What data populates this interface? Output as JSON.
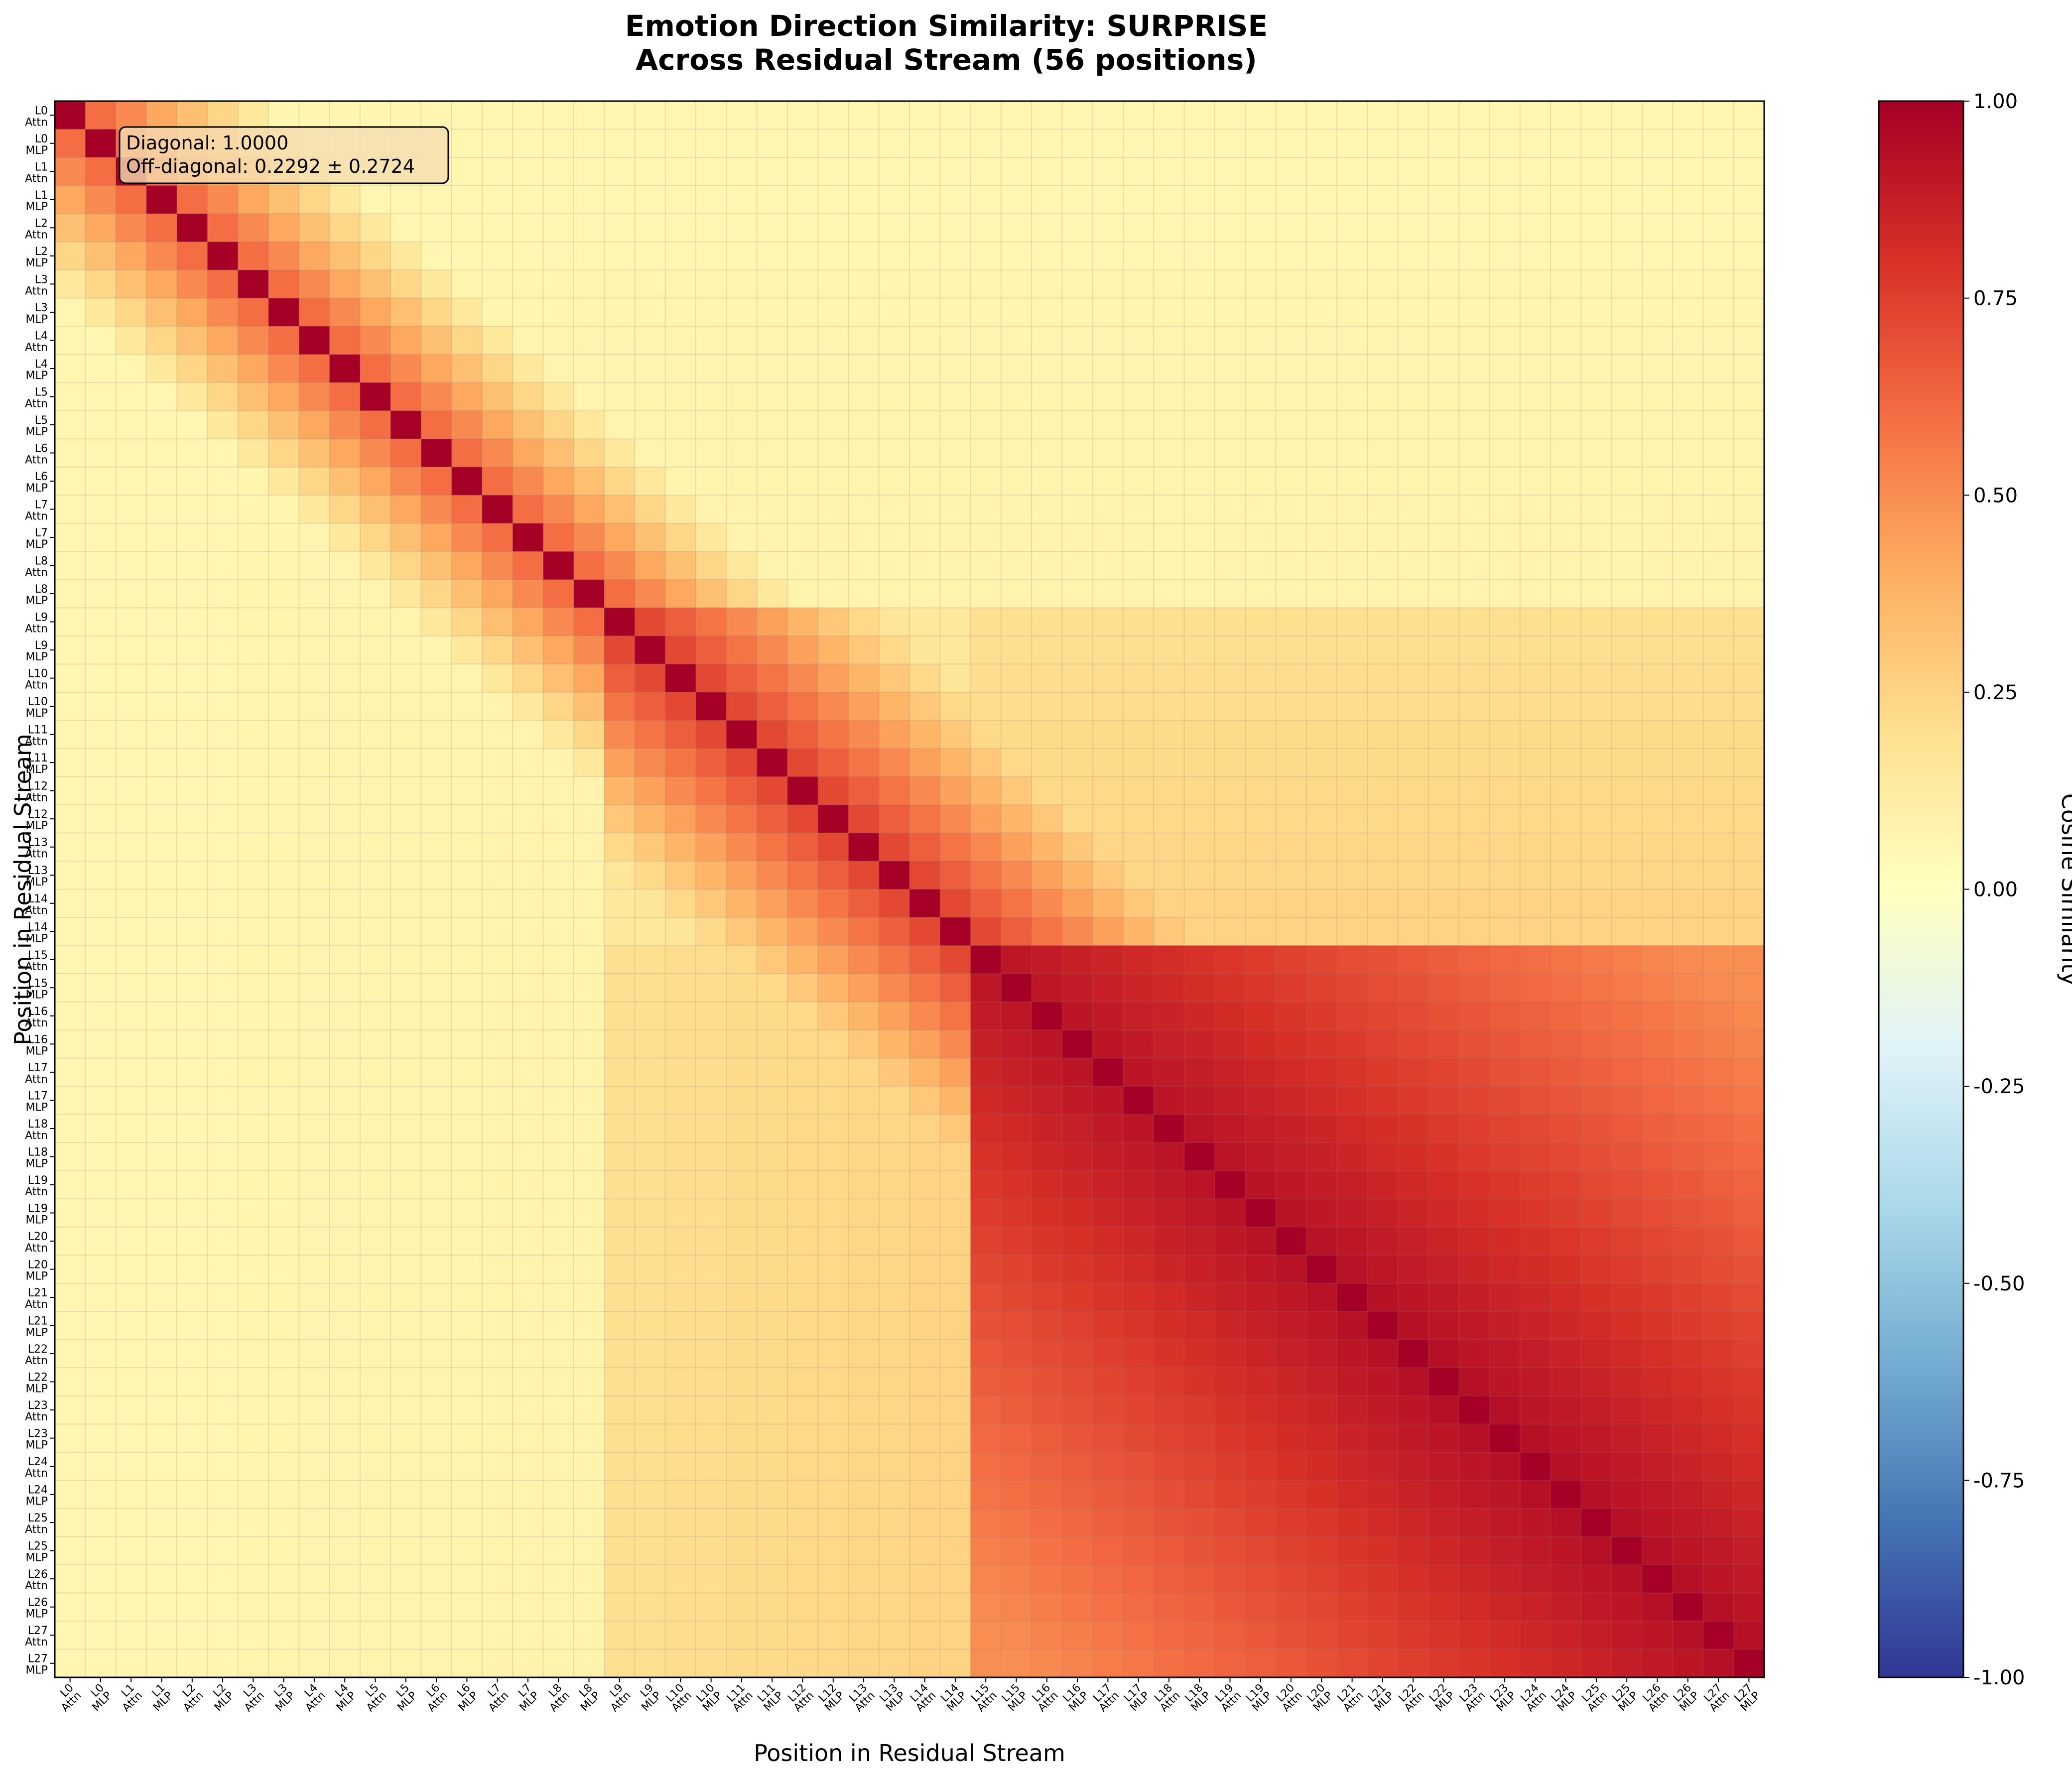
{
  "chart_data": {
    "type": "heatmap",
    "title_line1": "Emotion Direction Similarity: SURPRISE",
    "title_line2": "Across Residual Stream (56 positions)",
    "xlabel": "Position in Residual Stream",
    "ylabel": "Position in Residual Stream",
    "colorbar_label": "Cosine Similarity",
    "vmin": -1.0,
    "vmax": 1.0,
    "colorbar_ticks": [
      "1.00",
      "0.75",
      "0.50",
      "0.25",
      "0.00",
      "-0.25",
      "-0.50",
      "-0.75",
      "-1.00"
    ],
    "colormap": "RdYlBu_r",
    "annotation_line1": "Diagonal: 1.0000",
    "annotation_line2": "Off-diagonal: 0.2292 ± 0.2724",
    "positions": [
      "L0 Attn",
      "L0 MLP",
      "L1 Attn",
      "L1 MLP",
      "L2 Attn",
      "L2 MLP",
      "L3 Attn",
      "L3 MLP",
      "L4 Attn",
      "L4 MLP",
      "L5 Attn",
      "L5 MLP",
      "L6 Attn",
      "L6 MLP",
      "L7 Attn",
      "L7 MLP",
      "L8 Attn",
      "L8 MLP",
      "L9 Attn",
      "L9 MLP",
      "L10 Attn",
      "L10 MLP",
      "L11 Attn",
      "L11 MLP",
      "L12 Attn",
      "L12 MLP",
      "L13 Attn",
      "L13 MLP",
      "L14 Attn",
      "L14 MLP",
      "L15 Attn",
      "L15 MLP",
      "L16 Attn",
      "L16 MLP",
      "L17 Attn",
      "L17 MLP",
      "L18 Attn",
      "L18 MLP",
      "L19 Attn",
      "L19 MLP",
      "L20 Attn",
      "L20 MLP",
      "L21 Attn",
      "L21 MLP",
      "L22 Attn",
      "L22 MLP",
      "L23 Attn",
      "L23 MLP",
      "L24 Attn",
      "L24 MLP",
      "L25 Attn",
      "L25 MLP",
      "L26 Attn",
      "L26 MLP",
      "L27 Attn",
      "L27 MLP"
    ],
    "diagonal_value": 1.0,
    "off_diagonal_mean": 0.2292,
    "off_diagonal_std": 0.2724,
    "estimated_band_blocks": [
      {
        "range": [
          "L0 Attn",
          "L2 MLP"
        ],
        "near_diagonal": 0.6,
        "mid": 0.35,
        "background": 0.08
      },
      {
        "range": [
          "L3 Attn",
          "L8 MLP"
        ],
        "near_diagonal": 0.55,
        "mid": 0.3,
        "background": 0.1
      },
      {
        "range": [
          "L9 Attn",
          "L14 MLP"
        ],
        "near_diagonal": 0.75,
        "mid": 0.45,
        "background": 0.15
      },
      {
        "range": [
          "L15 Attn",
          "L27 MLP"
        ],
        "near_diagonal": 0.9,
        "mid": 0.7,
        "background": 0.35
      }
    ]
  }
}
